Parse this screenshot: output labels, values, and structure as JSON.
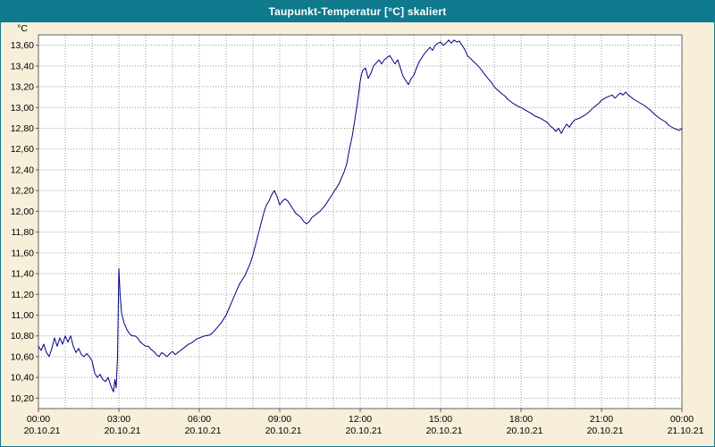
{
  "window": {
    "title": "Taupunkt-Temperatur [°C] skaliert"
  },
  "colors": {
    "titlebar_bg": "#0e7a8e",
    "titlebar_text": "#ffffff",
    "page_bg": "#f7efda",
    "plot_bg": "#ffffff",
    "plot_border": "#606060",
    "grid": "#999999",
    "tick_text": "#000000",
    "line": "#000080"
  },
  "chart_data": {
    "type": "line",
    "title": "Taupunkt-Temperatur [°C] skaliert",
    "ylabel": "°C",
    "xlabel": "",
    "ylim": [
      10.1,
      13.7
    ],
    "yticks": [
      13.6,
      13.4,
      13.2,
      13.0,
      12.8,
      12.6,
      12.4,
      12.2,
      12.0,
      11.8,
      11.6,
      11.4,
      11.2,
      11.0,
      10.8,
      10.6,
      10.4,
      10.2
    ],
    "xlim_hours": [
      0,
      24
    ],
    "grid": true,
    "legend_position": "none",
    "xticks": [
      {
        "hour": 0,
        "time": "00:00",
        "date": "20.10.21"
      },
      {
        "hour": 3,
        "time": "03:00",
        "date": "20.10.21"
      },
      {
        "hour": 6,
        "time": "06:00",
        "date": "20.10.21"
      },
      {
        "hour": 9,
        "time": "09:00",
        "date": "20.10.21"
      },
      {
        "hour": 12,
        "time": "12:00",
        "date": "20.10.21"
      },
      {
        "hour": 15,
        "time": "15:00",
        "date": "20.10.21"
      },
      {
        "hour": 18,
        "time": "18:00",
        "date": "20.10.21"
      },
      {
        "hour": 21,
        "time": "21:00",
        "date": "20.10.21"
      },
      {
        "hour": 24,
        "time": "00:00",
        "date": "21.10.21"
      }
    ],
    "series": [
      {
        "name": "Taupunkt-Temperatur",
        "color": "#000080",
        "points": [
          [
            0.0,
            10.7
          ],
          [
            0.1,
            10.66
          ],
          [
            0.2,
            10.72
          ],
          [
            0.3,
            10.64
          ],
          [
            0.4,
            10.6
          ],
          [
            0.5,
            10.68
          ],
          [
            0.6,
            10.78
          ],
          [
            0.7,
            10.7
          ],
          [
            0.8,
            10.78
          ],
          [
            0.9,
            10.72
          ],
          [
            1.0,
            10.8
          ],
          [
            1.1,
            10.74
          ],
          [
            1.2,
            10.8
          ],
          [
            1.3,
            10.7
          ],
          [
            1.4,
            10.64
          ],
          [
            1.5,
            10.68
          ],
          [
            1.6,
            10.62
          ],
          [
            1.7,
            10.6
          ],
          [
            1.8,
            10.63
          ],
          [
            1.9,
            10.6
          ],
          [
            2.0,
            10.56
          ],
          [
            2.1,
            10.44
          ],
          [
            2.2,
            10.4
          ],
          [
            2.3,
            10.43
          ],
          [
            2.4,
            10.38
          ],
          [
            2.5,
            10.36
          ],
          [
            2.6,
            10.4
          ],
          [
            2.7,
            10.32
          ],
          [
            2.8,
            10.26
          ],
          [
            2.85,
            10.38
          ],
          [
            2.9,
            10.3
          ],
          [
            2.95,
            10.6
          ],
          [
            3.0,
            11.45
          ],
          [
            3.05,
            11.18
          ],
          [
            3.1,
            11.02
          ],
          [
            3.2,
            10.92
          ],
          [
            3.3,
            10.86
          ],
          [
            3.4,
            10.82
          ],
          [
            3.5,
            10.8
          ],
          [
            3.6,
            10.8
          ],
          [
            3.7,
            10.78
          ],
          [
            3.8,
            10.74
          ],
          [
            3.9,
            10.72
          ],
          [
            4.0,
            10.7
          ],
          [
            4.1,
            10.7
          ],
          [
            4.2,
            10.67
          ],
          [
            4.3,
            10.65
          ],
          [
            4.4,
            10.62
          ],
          [
            4.5,
            10.6
          ],
          [
            4.6,
            10.64
          ],
          [
            4.7,
            10.62
          ],
          [
            4.8,
            10.6
          ],
          [
            4.9,
            10.63
          ],
          [
            5.0,
            10.65
          ],
          [
            5.1,
            10.62
          ],
          [
            5.2,
            10.64
          ],
          [
            5.3,
            10.66
          ],
          [
            5.4,
            10.68
          ],
          [
            5.5,
            10.7
          ],
          [
            5.6,
            10.72
          ],
          [
            5.7,
            10.73
          ],
          [
            5.8,
            10.75
          ],
          [
            5.9,
            10.77
          ],
          [
            6.0,
            10.78
          ],
          [
            6.2,
            10.8
          ],
          [
            6.4,
            10.81
          ],
          [
            6.5,
            10.83
          ],
          [
            6.6,
            10.86
          ],
          [
            6.8,
            10.92
          ],
          [
            7.0,
            11.0
          ],
          [
            7.1,
            11.06
          ],
          [
            7.2,
            11.12
          ],
          [
            7.3,
            11.18
          ],
          [
            7.4,
            11.24
          ],
          [
            7.5,
            11.3
          ],
          [
            7.6,
            11.34
          ],
          [
            7.7,
            11.38
          ],
          [
            7.8,
            11.44
          ],
          [
            7.9,
            11.5
          ],
          [
            8.0,
            11.58
          ],
          [
            8.1,
            11.68
          ],
          [
            8.2,
            11.78
          ],
          [
            8.3,
            11.88
          ],
          [
            8.4,
            11.98
          ],
          [
            8.5,
            12.06
          ],
          [
            8.6,
            12.1
          ],
          [
            8.7,
            12.16
          ],
          [
            8.8,
            12.2
          ],
          [
            8.9,
            12.14
          ],
          [
            9.0,
            12.06
          ],
          [
            9.1,
            12.1
          ],
          [
            9.2,
            12.12
          ],
          [
            9.3,
            12.1
          ],
          [
            9.4,
            12.06
          ],
          [
            9.5,
            12.02
          ],
          [
            9.6,
            11.98
          ],
          [
            9.7,
            11.96
          ],
          [
            9.8,
            11.94
          ],
          [
            9.9,
            11.9
          ],
          [
            10.0,
            11.88
          ],
          [
            10.1,
            11.9
          ],
          [
            10.2,
            11.94
          ],
          [
            10.3,
            11.96
          ],
          [
            10.4,
            11.98
          ],
          [
            10.5,
            12.0
          ],
          [
            10.6,
            12.03
          ],
          [
            10.7,
            12.06
          ],
          [
            10.8,
            12.1
          ],
          [
            10.9,
            12.14
          ],
          [
            11.0,
            12.18
          ],
          [
            11.1,
            12.22
          ],
          [
            11.2,
            12.26
          ],
          [
            11.3,
            12.32
          ],
          [
            11.4,
            12.38
          ],
          [
            11.5,
            12.46
          ],
          [
            11.6,
            12.6
          ],
          [
            11.7,
            12.72
          ],
          [
            11.8,
            12.88
          ],
          [
            11.9,
            13.05
          ],
          [
            12.0,
            13.25
          ],
          [
            12.05,
            13.32
          ],
          [
            12.1,
            13.36
          ],
          [
            12.2,
            13.38
          ],
          [
            12.3,
            13.28
          ],
          [
            12.4,
            13.33
          ],
          [
            12.5,
            13.4
          ],
          [
            12.6,
            13.43
          ],
          [
            12.7,
            13.46
          ],
          [
            12.8,
            13.42
          ],
          [
            12.9,
            13.46
          ],
          [
            13.0,
            13.48
          ],
          [
            13.1,
            13.5
          ],
          [
            13.2,
            13.46
          ],
          [
            13.3,
            13.42
          ],
          [
            13.4,
            13.46
          ],
          [
            13.5,
            13.38
          ],
          [
            13.6,
            13.3
          ],
          [
            13.7,
            13.26
          ],
          [
            13.8,
            13.22
          ],
          [
            13.9,
            13.28
          ],
          [
            14.0,
            13.31
          ],
          [
            14.1,
            13.38
          ],
          [
            14.2,
            13.44
          ],
          [
            14.3,
            13.48
          ],
          [
            14.4,
            13.52
          ],
          [
            14.5,
            13.55
          ],
          [
            14.6,
            13.58
          ],
          [
            14.7,
            13.55
          ],
          [
            14.8,
            13.6
          ],
          [
            14.9,
            13.62
          ],
          [
            15.0,
            13.63
          ],
          [
            15.1,
            13.6
          ],
          [
            15.2,
            13.62
          ],
          [
            15.3,
            13.65
          ],
          [
            15.4,
            13.62
          ],
          [
            15.5,
            13.65
          ],
          [
            15.6,
            13.63
          ],
          [
            15.7,
            13.64
          ],
          [
            15.8,
            13.6
          ],
          [
            15.9,
            13.56
          ],
          [
            16.0,
            13.5
          ],
          [
            16.2,
            13.45
          ],
          [
            16.4,
            13.4
          ],
          [
            16.5,
            13.37
          ],
          [
            16.7,
            13.3
          ],
          [
            16.9,
            13.24
          ],
          [
            17.0,
            13.2
          ],
          [
            17.2,
            13.15
          ],
          [
            17.4,
            13.11
          ],
          [
            17.5,
            13.08
          ],
          [
            17.7,
            13.04
          ],
          [
            17.9,
            13.01
          ],
          [
            18.0,
            13.0
          ],
          [
            18.2,
            12.97
          ],
          [
            18.4,
            12.94
          ],
          [
            18.5,
            12.92
          ],
          [
            18.7,
            12.9
          ],
          [
            18.9,
            12.87
          ],
          [
            19.0,
            12.85
          ],
          [
            19.1,
            12.82
          ],
          [
            19.2,
            12.8
          ],
          [
            19.3,
            12.77
          ],
          [
            19.4,
            12.8
          ],
          [
            19.5,
            12.75
          ],
          [
            19.6,
            12.8
          ],
          [
            19.7,
            12.84
          ],
          [
            19.8,
            12.81
          ],
          [
            19.9,
            12.85
          ],
          [
            20.0,
            12.88
          ],
          [
            20.2,
            12.9
          ],
          [
            20.4,
            12.93
          ],
          [
            20.5,
            12.95
          ],
          [
            20.7,
            13.0
          ],
          [
            20.9,
            13.04
          ],
          [
            21.0,
            13.07
          ],
          [
            21.2,
            13.1
          ],
          [
            21.4,
            13.12
          ],
          [
            21.5,
            13.09
          ],
          [
            21.7,
            13.14
          ],
          [
            21.8,
            13.12
          ],
          [
            21.9,
            13.15
          ],
          [
            22.0,
            13.12
          ],
          [
            22.2,
            13.08
          ],
          [
            22.4,
            13.05
          ],
          [
            22.6,
            13.02
          ],
          [
            22.8,
            12.98
          ],
          [
            23.0,
            12.93
          ],
          [
            23.2,
            12.89
          ],
          [
            23.4,
            12.86
          ],
          [
            23.5,
            12.83
          ],
          [
            23.7,
            12.8
          ],
          [
            23.9,
            12.78
          ],
          [
            24.0,
            12.8
          ]
        ]
      }
    ]
  }
}
